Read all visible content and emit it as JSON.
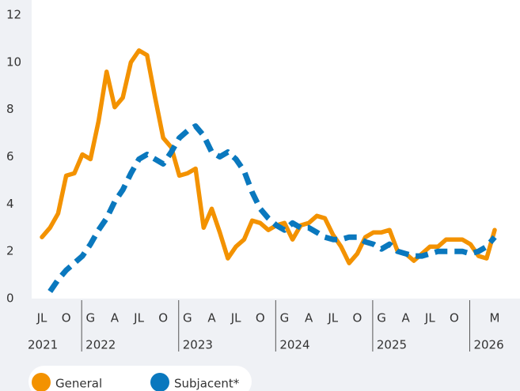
{
  "chart_data": {
    "type": "line",
    "categories": [
      "JL",
      null,
      null,
      "O",
      null,
      null,
      "G",
      null,
      null,
      "A",
      null,
      null,
      "JL",
      null,
      null,
      "O",
      null,
      null,
      "G",
      null,
      null,
      "A",
      null,
      null,
      "JL",
      null,
      null,
      "O",
      null,
      null,
      "G",
      null,
      null,
      "A",
      null,
      null,
      "JL",
      null,
      null,
      "O",
      null,
      null,
      "G",
      null,
      null,
      "A",
      null,
      null,
      "JL",
      null,
      null,
      "O",
      null,
      null,
      null,
      null,
      "M"
    ],
    "year_labels": [
      "2021",
      "2022",
      "2023",
      "2024",
      "2025",
      "2026"
    ],
    "series": [
      {
        "name": "General",
        "color": "#f39200",
        "dashed": false,
        "values": [
          2.6,
          3.0,
          3.6,
          5.2,
          5.3,
          6.1,
          5.9,
          7.5,
          9.6,
          8.1,
          8.5,
          10.0,
          10.5,
          10.3,
          8.5,
          6.8,
          6.4,
          5.2,
          5.3,
          5.5,
          3.0,
          3.8,
          2.8,
          1.7,
          2.2,
          2.5,
          3.3,
          3.2,
          2.9,
          3.1,
          3.2,
          2.5,
          3.1,
          3.2,
          3.5,
          3.4,
          2.7,
          2.2,
          1.5,
          1.9,
          2.6,
          2.8,
          2.8,
          2.9,
          2.0,
          1.9,
          1.6,
          1.9,
          2.2,
          2.2,
          2.5,
          2.5,
          2.5,
          2.3,
          1.8,
          1.7,
          2.9
        ]
      },
      {
        "name": "Subjacent*",
        "color": "#0a78be",
        "dashed": true,
        "values": [
          null,
          0.3,
          0.8,
          1.2,
          1.5,
          1.8,
          2.3,
          2.9,
          3.4,
          4.1,
          4.6,
          5.3,
          5.9,
          6.1,
          5.9,
          5.7,
          6.2,
          6.8,
          7.1,
          7.3,
          6.9,
          6.2,
          6.0,
          6.2,
          5.9,
          5.4,
          4.5,
          3.8,
          3.4,
          3.1,
          2.9,
          3.2,
          3.0,
          3.0,
          2.8,
          2.6,
          2.5,
          2.5,
          2.6,
          2.6,
          2.4,
          2.3,
          2.1,
          2.3,
          2.0,
          1.9,
          1.8,
          1.8,
          1.9,
          2.0,
          2.0,
          2.0,
          2.0,
          1.9,
          2.0,
          2.2,
          2.6
        ]
      }
    ],
    "ylim": [
      0,
      12
    ],
    "yticks": [
      0,
      2,
      4,
      6,
      8,
      10,
      12
    ],
    "legend": "bottom-left"
  }
}
